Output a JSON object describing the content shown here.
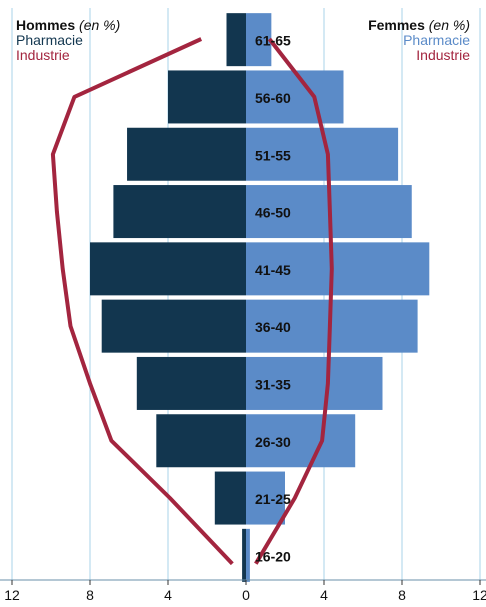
{
  "chart_data": {
    "type": "bar",
    "orientation": "horizontal-population-pyramid",
    "categories": [
      "61-65",
      "56-60",
      "51-55",
      "46-50",
      "41-45",
      "36-40",
      "31-35",
      "26-30",
      "21-25",
      "16-20"
    ],
    "series": [
      {
        "name": "Pharmacie",
        "group": "Hommes",
        "color": "#12364f",
        "values": [
          1.0,
          4.0,
          6.1,
          6.8,
          8.0,
          7.4,
          5.6,
          4.6,
          1.6,
          0.2
        ]
      },
      {
        "name": "Pharmacie",
        "group": "Femmes",
        "color": "#5b8bc8",
        "values": [
          1.3,
          5.0,
          7.8,
          8.5,
          9.4,
          8.8,
          7.0,
          5.6,
          2.0,
          0.2
        ]
      },
      {
        "name": "Industrie",
        "group": "Hommes",
        "type": "line",
        "color": "#a3253f",
        "values": [
          2.3,
          8.8,
          9.9,
          9.7,
          9.4,
          9.0,
          8.0,
          6.9,
          3.9,
          0.7
        ]
      },
      {
        "name": "Industrie",
        "group": "Femmes",
        "type": "line",
        "color": "#a3253f",
        "values": [
          1.2,
          3.5,
          4.2,
          4.3,
          4.4,
          4.3,
          4.2,
          3.9,
          2.5,
          0.5
        ]
      }
    ],
    "x_ticks": [
      "12",
      "8",
      "4",
      "0",
      "4",
      "8",
      "12"
    ],
    "xlim": [
      -12,
      12
    ],
    "grid": true
  },
  "legend": {
    "left": {
      "group": "Hommes",
      "unit": "(en %)",
      "pharmacie": "Pharmacie",
      "industrie": "Industrie"
    },
    "right": {
      "group": "Femmes",
      "unit": "(en %)",
      "pharmacie": "Pharmacie",
      "industrie": "Industrie"
    }
  },
  "colors": {
    "hommes_pharmacie": "#12364f",
    "femmes_pharmacie": "#5b8bc8",
    "industrie": "#a3253f",
    "grid": "#a9d3ea"
  }
}
